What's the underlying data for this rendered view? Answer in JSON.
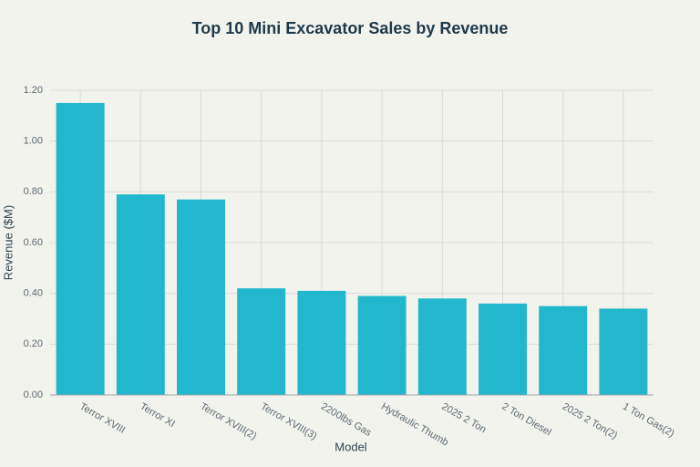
{
  "chart_data": {
    "type": "bar",
    "title": "Top 10 Mini Excavator Sales by Revenue",
    "x_label": "Model",
    "y_label": "Revenue ($M)",
    "categories": [
      "Terror XVIII",
      "Terror XI",
      "Terror XVIII(2)",
      "Terror XVIII(3)",
      "2200lbs Gas",
      "Hydraulic Thumb",
      "2025 2 Ton",
      "2 Ton Diesel",
      "2025 2 Ton(2)",
      "1 Ton Gas(2)"
    ],
    "values": [
      1.15,
      0.79,
      0.77,
      0.42,
      0.41,
      0.39,
      0.38,
      0.36,
      0.35,
      0.34
    ],
    "color": "#22b7cc",
    "ylim": [
      0,
      1.2
    ],
    "yticks": [
      {
        "value": 0,
        "label": "0.00"
      },
      {
        "value": 0.2,
        "label": "0.20"
      },
      {
        "value": 0.4,
        "label": "0.40"
      },
      {
        "value": 0.6,
        "label": "0.60"
      },
      {
        "value": 0.8,
        "label": "0.80"
      },
      {
        "value": 1,
        "label": "1.00"
      },
      {
        "value": 1.2,
        "label": "1.20"
      }
    ],
    "grid": true
  }
}
